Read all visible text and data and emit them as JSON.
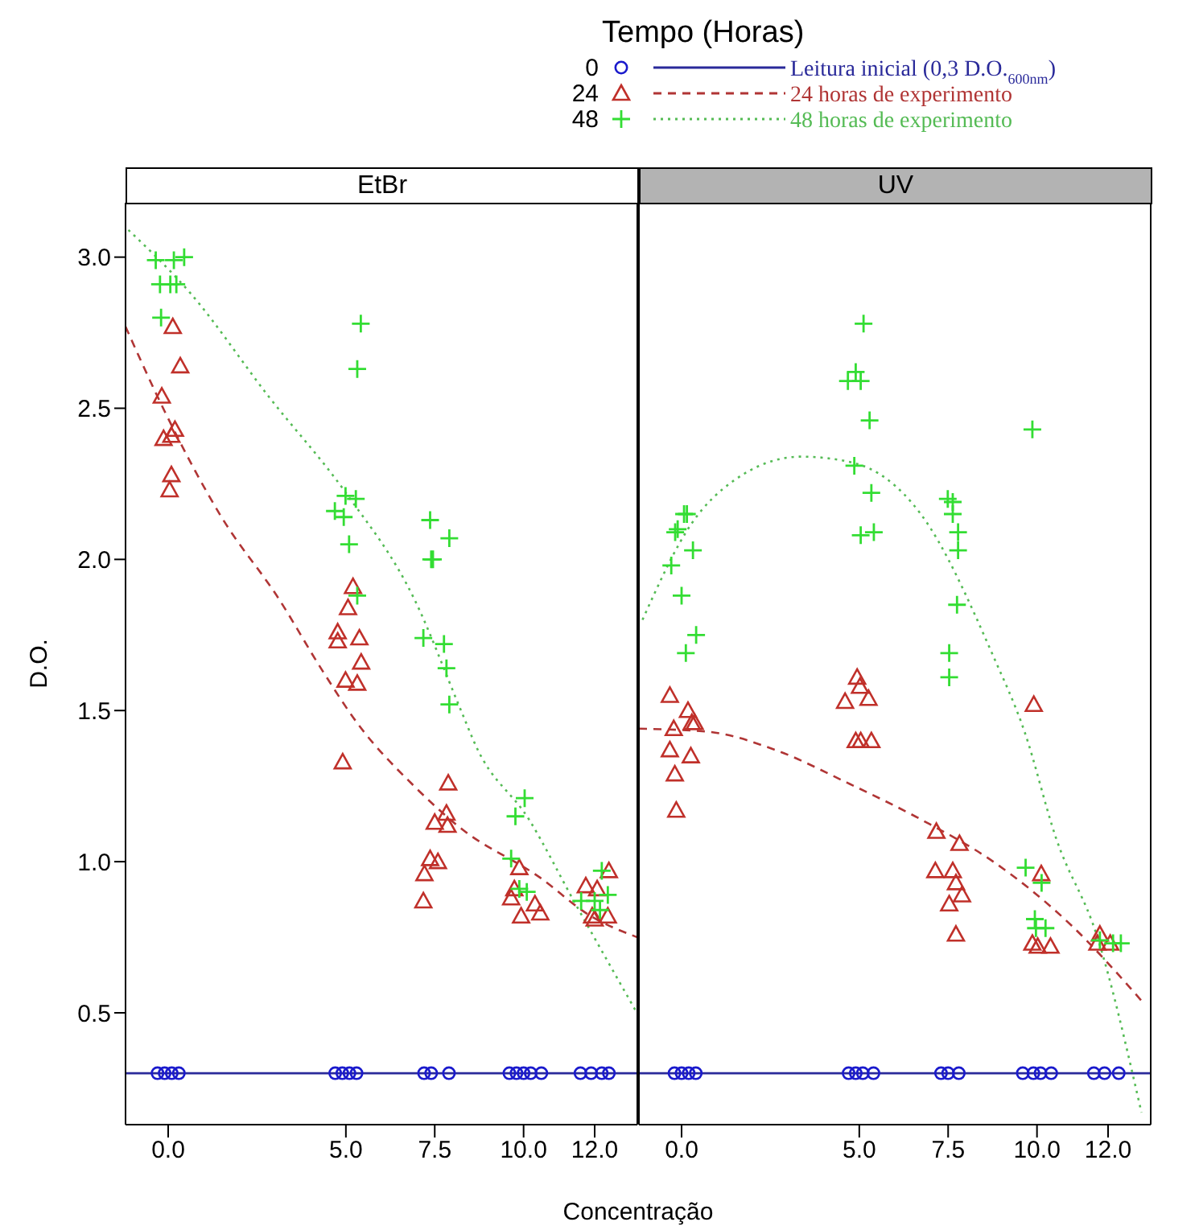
{
  "chart_data": [
    {
      "type": "scatter",
      "title": "EtBr",
      "xlabel": "Concentração",
      "ylabel": "D.O.",
      "legend_title": "Tempo (Horas)",
      "legend": "top",
      "xlim": [
        -1.2,
        13.2
      ],
      "xticks": [
        {
          "value": 0,
          "label": "0.0"
        },
        {
          "value": 5,
          "label": "5.0"
        },
        7.5,
        {
          "value": 10,
          "label": "10.0"
        },
        {
          "value": 12,
          "label": "12.0"
        }
      ],
      "ylim": [
        0.13,
        3.18
      ],
      "yticks": [
        0.5,
        {
          "value": 1,
          "label": "1.0"
        },
        1.5,
        {
          "value": 2,
          "label": "2.0"
        },
        2.5,
        {
          "value": 3,
          "label": "3.0"
        }
      ],
      "series": [
        {
          "name": "0",
          "marker": "circle",
          "color": "#1a1acc",
          "x": [
            -0.3,
            -0.1,
            0.1,
            0.3,
            4.7,
            4.9,
            5.1,
            5.3,
            7.2,
            7.4,
            7.9,
            9.6,
            9.8,
            10.0,
            10.2,
            10.5,
            11.6,
            11.9,
            12.2,
            12.4
          ],
          "values": [
            0.3,
            0.3,
            0.3,
            0.3,
            0.3,
            0.3,
            0.3,
            0.3,
            0.3,
            0.3,
            0.3,
            0.3,
            0.3,
            0.3,
            0.3,
            0.3,
            0.3,
            0.3,
            0.3,
            0.3
          ]
        },
        {
          "name": "24",
          "marker": "triangle",
          "color": "#c0302a",
          "x": [
            0.13,
            0.34,
            -0.18,
            0.19,
            -0.13,
            0.09,
            0.09,
            0.04,
            5.2,
            5.06,
            4.77,
            4.77,
            5.38,
            5.43,
            4.99,
            5.32,
            4.91,
            7.88,
            7.83,
            7.5,
            7.86,
            7.37,
            7.59,
            7.21,
            7.18,
            9.88,
            9.74,
            9.65,
            10.32,
            10.47,
            9.93,
            11.75,
            12.07,
            12.4,
            11.93,
            12.0,
            12.37
          ],
          "values": [
            2.77,
            2.64,
            2.54,
            2.43,
            2.4,
            2.41,
            2.28,
            2.23,
            1.91,
            1.84,
            1.76,
            1.73,
            1.74,
            1.66,
            1.6,
            1.59,
            1.33,
            1.26,
            1.16,
            1.13,
            1.12,
            1.01,
            1.0,
            0.96,
            0.87,
            0.98,
            0.91,
            0.88,
            0.86,
            0.83,
            0.82,
            0.92,
            0.91,
            0.97,
            0.82,
            0.81,
            0.82
          ]
        },
        {
          "name": "48",
          "marker": "cross",
          "color": "#33dd33",
          "x": [
            -0.35,
            0.16,
            0.45,
            -0.23,
            0.06,
            0.23,
            -0.2,
            5.42,
            5.32,
            4.99,
            5.28,
            4.69,
            4.94,
            5.09,
            7.37,
            7.91,
            7.4,
            7.45,
            5.32,
            7.18,
            7.76,
            7.83,
            7.91,
            10.03,
            9.77,
            9.65,
            9.88,
            10.09,
            12.2,
            11.62,
            12.0,
            12.37,
            12.15
          ],
          "values": [
            2.99,
            2.99,
            3.0,
            2.91,
            2.91,
            2.91,
            2.8,
            2.78,
            2.63,
            2.21,
            2.2,
            2.16,
            2.14,
            2.05,
            2.13,
            2.07,
            2.0,
            2.0,
            1.88,
            1.74,
            1.72,
            1.64,
            1.52,
            1.21,
            1.15,
            1.01,
            0.91,
            0.9,
            0.97,
            0.87,
            0.87,
            0.89,
            0.84
          ]
        },
        {
          "name": "Leitura inicial (0,3 D.O.$_{600nm}$)",
          "type": "line",
          "line_style": "solid",
          "marker": "none",
          "color": "#2a2a9a",
          "x": [
            -1.2,
            13.2
          ],
          "values": [
            0.3,
            0.3
          ]
        },
        {
          "name": "24 horas de experimento",
          "type": "line",
          "line_style": "dashed",
          "marker": "none",
          "color": "#b03535",
          "x": [
            -1.2,
            -0.1,
            1.5,
            3.11,
            4.35,
            5.31,
            6.92,
            8.24,
            10.43,
            11.89,
            13.2
          ],
          "values": [
            2.77,
            2.49,
            2.14,
            1.87,
            1.63,
            1.46,
            1.25,
            1.11,
            0.95,
            0.82,
            0.75
          ]
        },
        {
          "name": "48 horas de experimento",
          "type": "line",
          "line_style": "dotted",
          "marker": "none",
          "color": "#55bb55",
          "x": [
            -1.12,
            0.63,
            2.82,
            5.0,
            6.92,
            8.24,
            8.67,
            10.15,
            11.46,
            13.14
          ],
          "values": [
            3.09,
            2.88,
            2.54,
            2.22,
            1.87,
            1.5,
            1.38,
            1.14,
            0.86,
            0.51
          ]
        }
      ]
    },
    {
      "type": "scatter",
      "title": "UV",
      "tick_labels": "x",
      "xlim": [
        -1.2,
        13.2
      ],
      "xticks": [
        {
          "value": 0,
          "label": "0.0"
        },
        {
          "value": 5,
          "label": "5.0"
        },
        7.5,
        {
          "value": 10,
          "label": "10.0"
        },
        {
          "value": 12,
          "label": "12.0"
        }
      ],
      "ylim": [
        0.13,
        3.18
      ],
      "yticks": [
        0.5,
        1,
        1.5,
        2,
        2.5,
        3
      ],
      "series": [
        {
          "marker": "circle",
          "color": "#1a1acc",
          "x": [
            -0.2,
            0,
            0.2,
            0.4,
            4.7,
            4.9,
            5.1,
            5.4,
            7.3,
            7.5,
            7.8,
            9.6,
            9.9,
            10.1,
            10.4,
            11.6,
            11.9,
            12.3
          ],
          "values": [
            0.3,
            0.3,
            0.3,
            0.3,
            0.3,
            0.3,
            0.3,
            0.3,
            0.3,
            0.3,
            0.3,
            0.3,
            0.3,
            0.3,
            0.3,
            0.3,
            0.3,
            0.3
          ]
        },
        {
          "marker": "triangle",
          "color": "#c0302a",
          "x": [
            -0.33,
            0.18,
            0.29,
            0.37,
            -0.22,
            -0.33,
            0.26,
            -0.19,
            -0.15,
            4.94,
            5.02,
            4.6,
            5.26,
            4.9,
            5.04,
            5.34,
            7.17,
            7.82,
            7.14,
            7.63,
            7.72,
            7.89,
            7.53,
            7.72,
            9.91,
            10.12,
            9.87,
            10.02,
            10.38,
            11.77,
            11.7,
            12.06
          ],
          "values": [
            1.55,
            1.5,
            1.46,
            1.46,
            1.44,
            1.37,
            1.35,
            1.29,
            1.17,
            1.61,
            1.58,
            1.53,
            1.54,
            1.4,
            1.4,
            1.4,
            1.1,
            1.06,
            0.97,
            0.97,
            0.93,
            0.89,
            0.86,
            0.76,
            1.52,
            0.96,
            0.73,
            0.72,
            0.72,
            0.76,
            0.73,
            0.73
          ]
        },
        {
          "marker": "cross",
          "color": "#33dd33",
          "x": [
            5.12,
            4.9,
            4.68,
            5.04,
            5.29,
            9.87,
            4.86,
            5.34,
            5.04,
            5.41,
            7.49,
            7.63,
            7.63,
            7.78,
            7.78,
            7.75,
            7.53,
            7.53,
            0.07,
            0.15,
            -0.18,
            -0.11,
            0.32,
            -0.29,
            0,
            0.41,
            0.12,
            9.68,
            10.13,
            9.94,
            9.97,
            10.24,
            11.77,
            12.14,
            12.36
          ],
          "values": [
            2.78,
            2.62,
            2.59,
            2.59,
            2.46,
            2.43,
            2.31,
            2.22,
            2.08,
            2.09,
            2.2,
            2.19,
            2.15,
            2.09,
            2.03,
            1.85,
            1.69,
            1.61,
            2.15,
            2.15,
            2.09,
            2.1,
            2.03,
            1.98,
            1.88,
            1.75,
            1.69,
            0.98,
            0.93,
            0.81,
            0.78,
            0.78,
            0.74,
            0.73,
            0.73
          ]
        },
        {
          "type": "line",
          "line_style": "solid",
          "marker": "none",
          "color": "#2a2a9a",
          "x": [
            -1.2,
            13.2
          ],
          "values": [
            0.3,
            0.3
          ]
        },
        {
          "type": "line",
          "line_style": "dashed",
          "marker": "none",
          "color": "#b03535",
          "x": [
            -1.2,
            0.73,
            2.63,
            4.68,
            6.73,
            8.77,
            10.96,
            12.94
          ],
          "values": [
            1.44,
            1.43,
            1.37,
            1.26,
            1.14,
            1.0,
            0.79,
            0.54
          ]
        },
        {
          "type": "line",
          "line_style": "dotted",
          "marker": "none",
          "color": "#55bb55",
          "x": [
            -1.1,
            0.29,
            1.46,
            3.36,
            4.82,
            6.73,
            8.77,
            9.65,
            10.53,
            11.7,
            12.94
          ],
          "values": [
            1.8,
            2.12,
            2.26,
            2.34,
            2.32,
            2.15,
            1.68,
            1.43,
            1.08,
            0.75,
            0.17
          ]
        }
      ]
    }
  ]
}
